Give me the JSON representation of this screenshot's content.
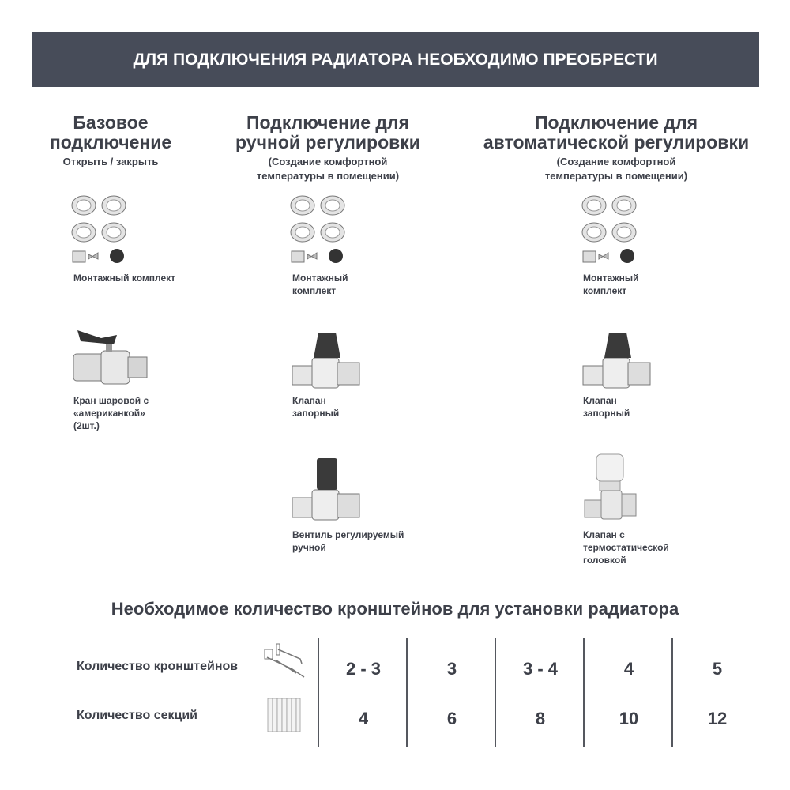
{
  "banner": {
    "title": "ДЛЯ ПОДКЛЮЧЕНИЯ РАДИАТОРА НЕОБХОДИМО ПРЕОБРЕСТИ"
  },
  "columns": [
    {
      "title": "Базовое подключение",
      "subtitle": "Открыть / закрыть",
      "items": [
        {
          "label": "Монтажный комплект",
          "icon": "fittings-kit-icon"
        },
        {
          "label": "Кран шаровой с «американкой» (2шт.)",
          "icon": "ball-valve-icon"
        }
      ]
    },
    {
      "title": "Подключение для ручной регулировки",
      "subtitle": "(Создание комфортной температуры в помещении)",
      "items": [
        {
          "label": "Монтажный комплект",
          "icon": "fittings-kit-icon"
        },
        {
          "label": "Клапан запорный",
          "icon": "shutoff-valve-icon"
        },
        {
          "label": "Вентиль регулируемый ручной",
          "icon": "manual-valve-icon"
        }
      ]
    },
    {
      "title": "Подключение для автоматической регулировки",
      "subtitle": "(Создание комфортной температуры в помещении)",
      "items": [
        {
          "label": "Монтажный комплект",
          "icon": "fittings-kit-icon"
        },
        {
          "label": "Клапан запорный",
          "icon": "shutoff-valve-icon"
        },
        {
          "label": "Клапан с термостатической головкой",
          "icon": "thermostatic-valve-icon"
        }
      ]
    }
  ],
  "brackets": {
    "title": "Необходимое количество кронштейнов для установки радиатора",
    "rows": [
      {
        "label": "Количество кронштейнов",
        "icon": "bracket-icon",
        "values": [
          "2 - 3",
          "3",
          "3 - 4",
          "4",
          "5"
        ]
      },
      {
        "label": "Количество секций",
        "icon": "radiator-icon",
        "values": [
          "4",
          "6",
          "8",
          "10",
          "12"
        ]
      }
    ]
  },
  "colors": {
    "banner": "#474c59",
    "text": "#3d4049"
  }
}
